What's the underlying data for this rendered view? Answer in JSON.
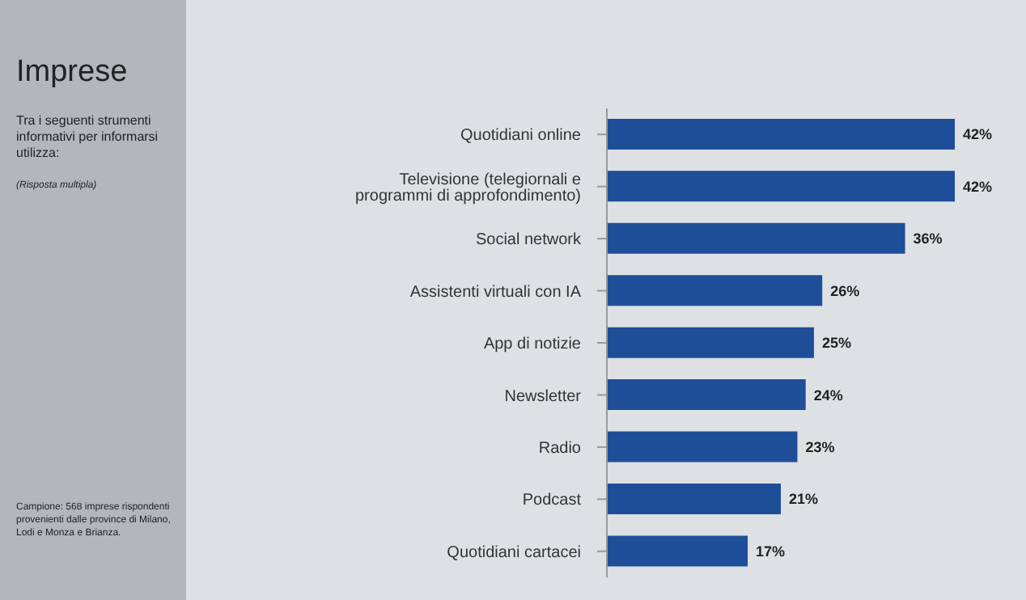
{
  "chart_data": {
    "type": "bar",
    "orientation": "horizontal",
    "title": "Imprese",
    "subtitle": "Tra i seguenti strumenti informativi per informarsi utilizza:",
    "annotations": [
      "(Risposta multipla)",
      "Campione: 568 imprese rispondenti provenienti dalle province di Milano, Lodi e Monza e Brianza."
    ],
    "categories": [
      "Quotidiani online",
      "Televisione (telegiornali e programmi di approfondimento)",
      "Social network",
      "Assistenti virtuali con IA",
      "App di notizie",
      "Newsletter",
      "Radio",
      "Podcast",
      "Quotidiani cartacei"
    ],
    "values": [
      42,
      42,
      36,
      26,
      25,
      24,
      23,
      21,
      17
    ],
    "value_labels": [
      "42%",
      "42%",
      "36%",
      "26%",
      "25%",
      "24%",
      "23%",
      "21%",
      "17%"
    ],
    "color": "#1f4e99"
  }
}
